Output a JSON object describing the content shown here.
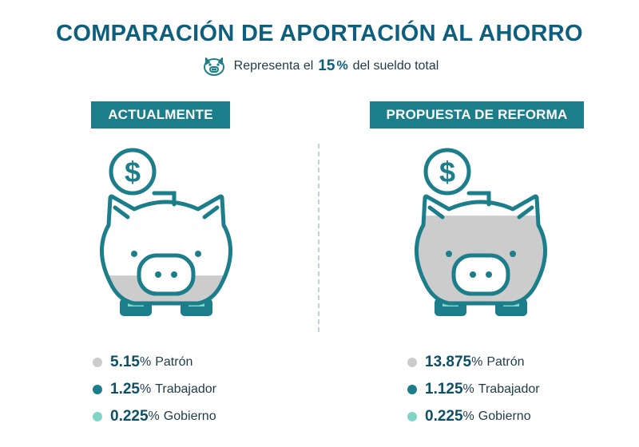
{
  "header": {
    "title": "COMPARACIÓN DE APORTACIÓN AL AHORRO",
    "subtitle_before": "Representa el",
    "subtitle_value": "15",
    "subtitle_unit": "%",
    "subtitle_after": "del sueldo total",
    "icon": "piggy-bank-icon"
  },
  "panels": [
    {
      "label": "ACTUALMENTE",
      "fill_level": 0.26,
      "items": [
        {
          "value": "5.15",
          "unit": "%",
          "label": "Patrón",
          "color": "#cccccc"
        },
        {
          "value": "1.25",
          "unit": "%",
          "label": "Trabajador",
          "color": "#1c7e8a"
        },
        {
          "value": "0.225",
          "unit": "%",
          "label": "Gobierno",
          "color": "#7fd6c6"
        }
      ]
    },
    {
      "label": "PROPUESTA DE REFORMA",
      "fill_level": 0.82,
      "items": [
        {
          "value": "13.875",
          "unit": "%",
          "label": "Patrón",
          "color": "#cccccc"
        },
        {
          "value": "1.125",
          "unit": "%",
          "label": "Trabajador",
          "color": "#1c7e8a"
        },
        {
          "value": "0.225",
          "unit": "%",
          "label": "Gobierno",
          "color": "#7fd6c6"
        }
      ]
    }
  ],
  "colors": {
    "title": "#0e5e7e",
    "outline": "#1c7e8a",
    "fill": "#cccccc",
    "feet": "#1c7e8a"
  }
}
